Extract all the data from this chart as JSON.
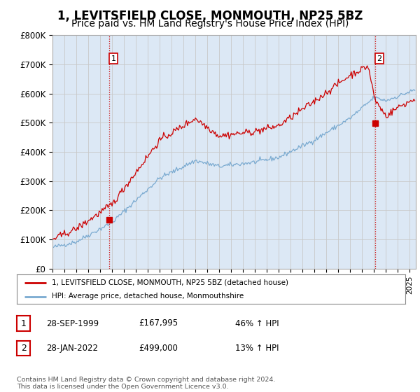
{
  "title": "1, LEVITSFIELD CLOSE, MONMOUTH, NP25 5BZ",
  "subtitle": "Price paid vs. HM Land Registry's House Price Index (HPI)",
  "title_fontsize": 12,
  "subtitle_fontsize": 10,
  "background_color": "#ffffff",
  "grid_color": "#c8c8c8",
  "plot_bg_color": "#dce8f5",
  "red_line_color": "#cc0000",
  "blue_line_color": "#7aaad0",
  "dashed_line_color": "#cc0000",
  "ylim": [
    0,
    800000
  ],
  "yticks": [
    0,
    100000,
    200000,
    300000,
    400000,
    500000,
    600000,
    700000,
    800000
  ],
  "ytick_labels": [
    "£0",
    "£100K",
    "£200K",
    "£300K",
    "£400K",
    "£500K",
    "£600K",
    "£700K",
    "£800K"
  ],
  "transaction1_date": 1999.75,
  "transaction1_price": 167995,
  "transaction1_label": "1",
  "transaction2_date": 2022.08,
  "transaction2_price": 499000,
  "transaction2_label": "2",
  "legend_entries": [
    "1, LEVITSFIELD CLOSE, MONMOUTH, NP25 5BZ (detached house)",
    "HPI: Average price, detached house, Monmouthshire"
  ],
  "table_rows": [
    [
      "1",
      "28-SEP-1999",
      "£167,995",
      "46% ↑ HPI"
    ],
    [
      "2",
      "28-JAN-2022",
      "£499,000",
      "13% ↑ HPI"
    ]
  ],
  "footer": "Contains HM Land Registry data © Crown copyright and database right 2024.\nThis data is licensed under the Open Government Licence v3.0.",
  "xmin": 1995.0,
  "xmax": 2025.5
}
